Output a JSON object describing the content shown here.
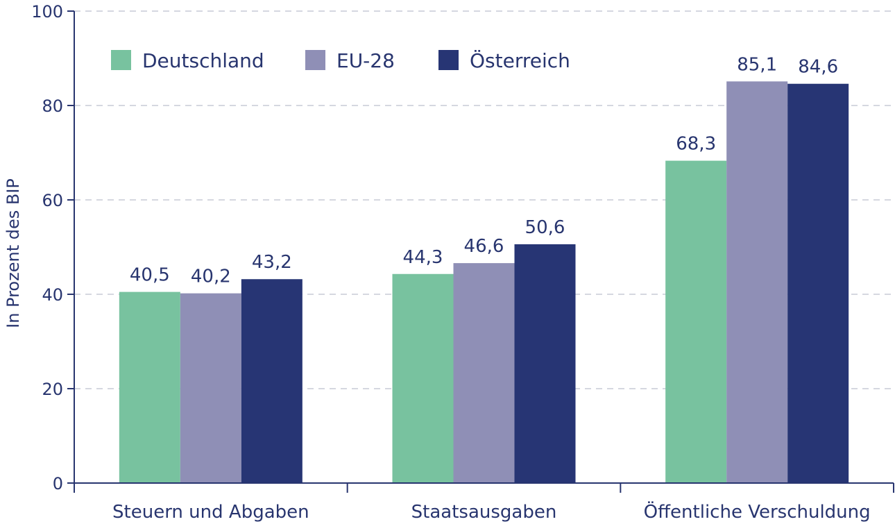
{
  "chart_data": {
    "type": "bar",
    "title": "",
    "xlabel": "",
    "ylabel": "In Prozent des BIP",
    "ylim": [
      0,
      100
    ],
    "yticks": [
      0,
      20,
      40,
      60,
      80,
      100
    ],
    "grid": true,
    "legend_position": "top-left",
    "categories": [
      "Steuern und Abgaben",
      "Staatsausgaben",
      "Öffentliche Verschuldung"
    ],
    "series": [
      {
        "name": "Deutschland",
        "color": "#78c29f",
        "values": [
          40.5,
          44.3,
          68.3
        ],
        "labels": [
          "40,5",
          "44,3",
          "68,3"
        ]
      },
      {
        "name": "EU-28",
        "color": "#8f8fb6",
        "values": [
          40.2,
          46.6,
          85.1
        ],
        "labels": [
          "40,2",
          "46,6",
          "85,1"
        ]
      },
      {
        "name": "Österreich",
        "color": "#273574",
        "values": [
          43.2,
          50.6,
          84.6
        ],
        "labels": [
          "43,2",
          "50,6",
          "84,6"
        ]
      }
    ]
  }
}
